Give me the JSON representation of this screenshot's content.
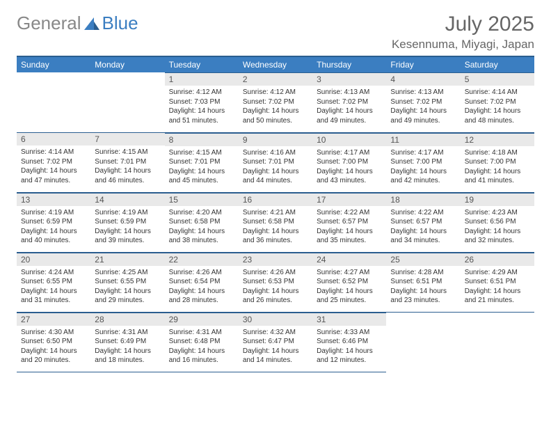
{
  "logo": {
    "text1": "General",
    "text2": "Blue"
  },
  "title": "July 2025",
  "location": "Kesennuma, Miyagi, Japan",
  "colors": {
    "header_bg": "#3b7ec1",
    "header_border": "#2a5d8f",
    "daynum_bg": "#e9e9e9",
    "text": "#333333",
    "muted": "#666666"
  },
  "columns": [
    "Sunday",
    "Monday",
    "Tuesday",
    "Wednesday",
    "Thursday",
    "Friday",
    "Saturday"
  ],
  "weeks": [
    [
      null,
      null,
      {
        "n": "1",
        "sr": "4:12 AM",
        "ss": "7:03 PM",
        "dl": "14 hours and 51 minutes."
      },
      {
        "n": "2",
        "sr": "4:12 AM",
        "ss": "7:02 PM",
        "dl": "14 hours and 50 minutes."
      },
      {
        "n": "3",
        "sr": "4:13 AM",
        "ss": "7:02 PM",
        "dl": "14 hours and 49 minutes."
      },
      {
        "n": "4",
        "sr": "4:13 AM",
        "ss": "7:02 PM",
        "dl": "14 hours and 49 minutes."
      },
      {
        "n": "5",
        "sr": "4:14 AM",
        "ss": "7:02 PM",
        "dl": "14 hours and 48 minutes."
      }
    ],
    [
      {
        "n": "6",
        "sr": "4:14 AM",
        "ss": "7:02 PM",
        "dl": "14 hours and 47 minutes."
      },
      {
        "n": "7",
        "sr": "4:15 AM",
        "ss": "7:01 PM",
        "dl": "14 hours and 46 minutes."
      },
      {
        "n": "8",
        "sr": "4:15 AM",
        "ss": "7:01 PM",
        "dl": "14 hours and 45 minutes."
      },
      {
        "n": "9",
        "sr": "4:16 AM",
        "ss": "7:01 PM",
        "dl": "14 hours and 44 minutes."
      },
      {
        "n": "10",
        "sr": "4:17 AM",
        "ss": "7:00 PM",
        "dl": "14 hours and 43 minutes."
      },
      {
        "n": "11",
        "sr": "4:17 AM",
        "ss": "7:00 PM",
        "dl": "14 hours and 42 minutes."
      },
      {
        "n": "12",
        "sr": "4:18 AM",
        "ss": "7:00 PM",
        "dl": "14 hours and 41 minutes."
      }
    ],
    [
      {
        "n": "13",
        "sr": "4:19 AM",
        "ss": "6:59 PM",
        "dl": "14 hours and 40 minutes."
      },
      {
        "n": "14",
        "sr": "4:19 AM",
        "ss": "6:59 PM",
        "dl": "14 hours and 39 minutes."
      },
      {
        "n": "15",
        "sr": "4:20 AM",
        "ss": "6:58 PM",
        "dl": "14 hours and 38 minutes."
      },
      {
        "n": "16",
        "sr": "4:21 AM",
        "ss": "6:58 PM",
        "dl": "14 hours and 36 minutes."
      },
      {
        "n": "17",
        "sr": "4:22 AM",
        "ss": "6:57 PM",
        "dl": "14 hours and 35 minutes."
      },
      {
        "n": "18",
        "sr": "4:22 AM",
        "ss": "6:57 PM",
        "dl": "14 hours and 34 minutes."
      },
      {
        "n": "19",
        "sr": "4:23 AM",
        "ss": "6:56 PM",
        "dl": "14 hours and 32 minutes."
      }
    ],
    [
      {
        "n": "20",
        "sr": "4:24 AM",
        "ss": "6:55 PM",
        "dl": "14 hours and 31 minutes."
      },
      {
        "n": "21",
        "sr": "4:25 AM",
        "ss": "6:55 PM",
        "dl": "14 hours and 29 minutes."
      },
      {
        "n": "22",
        "sr": "4:26 AM",
        "ss": "6:54 PM",
        "dl": "14 hours and 28 minutes."
      },
      {
        "n": "23",
        "sr": "4:26 AM",
        "ss": "6:53 PM",
        "dl": "14 hours and 26 minutes."
      },
      {
        "n": "24",
        "sr": "4:27 AM",
        "ss": "6:52 PM",
        "dl": "14 hours and 25 minutes."
      },
      {
        "n": "25",
        "sr": "4:28 AM",
        "ss": "6:51 PM",
        "dl": "14 hours and 23 minutes."
      },
      {
        "n": "26",
        "sr": "4:29 AM",
        "ss": "6:51 PM",
        "dl": "14 hours and 21 minutes."
      }
    ],
    [
      {
        "n": "27",
        "sr": "4:30 AM",
        "ss": "6:50 PM",
        "dl": "14 hours and 20 minutes."
      },
      {
        "n": "28",
        "sr": "4:31 AM",
        "ss": "6:49 PM",
        "dl": "14 hours and 18 minutes."
      },
      {
        "n": "29",
        "sr": "4:31 AM",
        "ss": "6:48 PM",
        "dl": "14 hours and 16 minutes."
      },
      {
        "n": "30",
        "sr": "4:32 AM",
        "ss": "6:47 PM",
        "dl": "14 hours and 14 minutes."
      },
      {
        "n": "31",
        "sr": "4:33 AM",
        "ss": "6:46 PM",
        "dl": "14 hours and 12 minutes."
      },
      null,
      null
    ]
  ],
  "labels": {
    "sunrise": "Sunrise:",
    "sunset": "Sunset:",
    "daylight": "Daylight:"
  }
}
